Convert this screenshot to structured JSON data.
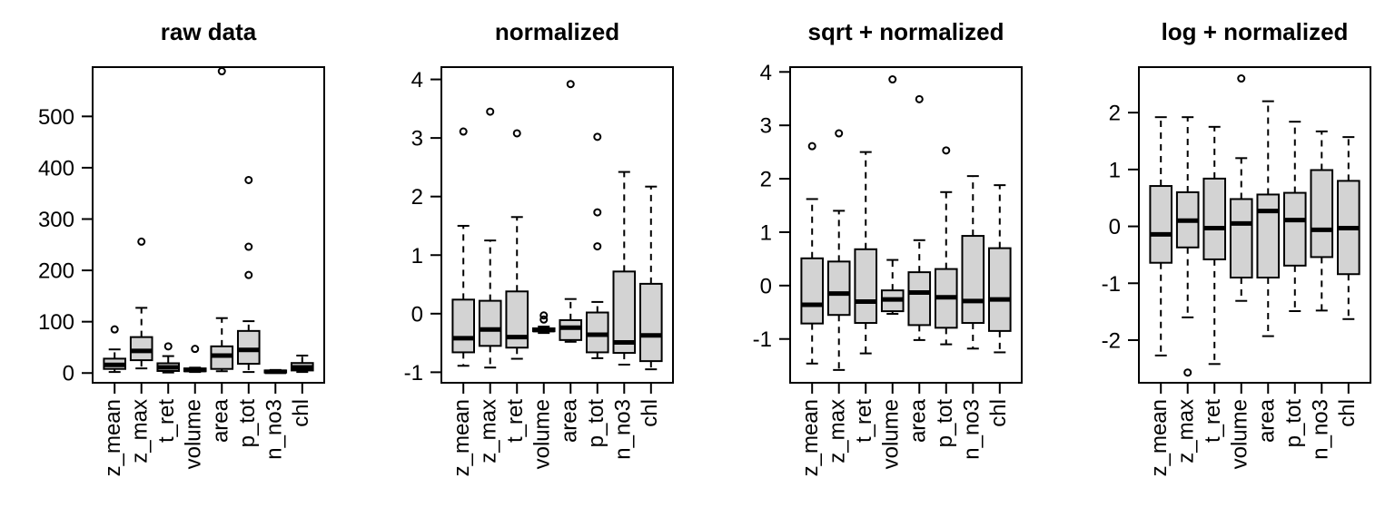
{
  "figure": {
    "background": "#ffffff",
    "box_fill": "#d3d3d3",
    "stroke_color": "#000000"
  },
  "chart_data": [
    {
      "type": "boxplot",
      "title": "raw data",
      "xlabel": "",
      "ylabel": "",
      "grid": false,
      "ylim": [
        -19,
        596
      ],
      "yticks": [
        0,
        100,
        200,
        300,
        400,
        500
      ],
      "categories": [
        "z_mean",
        "z_max",
        "t_ret",
        "volume",
        "area",
        "p_tot",
        "n_no3",
        "chl"
      ],
      "series": [
        {
          "name": "z_mean",
          "lo": 2,
          "q1": 8,
          "med": 16,
          "q3": 28,
          "hi": 46,
          "outliers": [
            85
          ]
        },
        {
          "name": "z_max",
          "lo": 9,
          "q1": 25,
          "med": 43,
          "q3": 70,
          "hi": 127,
          "outliers": [
            256
          ]
        },
        {
          "name": "t_ret",
          "lo": 1,
          "q1": 4,
          "med": 11,
          "q3": 19,
          "hi": 33,
          "outliers": [
            52
          ]
        },
        {
          "name": "volume",
          "lo": 2,
          "q1": 3.5,
          "med": 6,
          "q3": 9,
          "hi": 10.5,
          "outliers": [
            47
          ]
        },
        {
          "name": "area",
          "lo": 3.5,
          "q1": 8,
          "med": 34,
          "q3": 52,
          "hi": 107,
          "outliers": [
            588
          ]
        },
        {
          "name": "p_tot",
          "lo": 2,
          "q1": 18,
          "med": 45,
          "q3": 82,
          "hi": 101,
          "outliers": [
            191,
            246,
            376
          ]
        },
        {
          "name": "n_no3",
          "lo": 0.5,
          "q1": 1,
          "med": 2.5,
          "q3": 5,
          "hi": 6,
          "outliers": []
        },
        {
          "name": "chl",
          "lo": 2,
          "q1": 5,
          "med": 11,
          "q3": 19.5,
          "hi": 34,
          "outliers": []
        }
      ]
    },
    {
      "type": "boxplot",
      "title": "normalized",
      "xlabel": "",
      "ylabel": "",
      "grid": false,
      "ylim": [
        -1.18,
        4.21
      ],
      "yticks": [
        -1,
        0,
        1,
        2,
        3,
        4
      ],
      "categories": [
        "z_mean",
        "z_max",
        "t_ret",
        "volume",
        "area",
        "p_tot",
        "n_no3",
        "chl"
      ],
      "series": [
        {
          "name": "z_mean",
          "lo": -0.89,
          "q1": -0.66,
          "med": -0.42,
          "q3": 0.24,
          "hi": 1.5,
          "outliers": [
            3.11
          ]
        },
        {
          "name": "z_max",
          "lo": -0.92,
          "q1": -0.55,
          "med": -0.27,
          "q3": 0.22,
          "hi": 1.25,
          "outliers": [
            3.45
          ]
        },
        {
          "name": "t_ret",
          "lo": -0.77,
          "q1": -0.58,
          "med": -0.4,
          "q3": 0.38,
          "hi": 1.65,
          "outliers": [
            3.08
          ]
        },
        {
          "name": "volume",
          "lo": -0.33,
          "q1": -0.3,
          "med": -0.28,
          "q3": -0.25,
          "hi": -0.22,
          "outliers": [
            -0.03,
            -0.1
          ]
        },
        {
          "name": "area",
          "lo": -0.48,
          "q1": -0.45,
          "med": -0.24,
          "q3": -0.11,
          "hi": 0.25,
          "outliers": [
            3.92
          ]
        },
        {
          "name": "p_tot",
          "lo": -0.76,
          "q1": -0.66,
          "med": -0.36,
          "q3": 0.02,
          "hi": 0.2,
          "outliers": [
            1.15,
            1.73,
            3.02
          ]
        },
        {
          "name": "n_no3",
          "lo": -0.87,
          "q1": -0.67,
          "med": -0.49,
          "q3": 0.72,
          "hi": 2.42,
          "outliers": []
        },
        {
          "name": "chl",
          "lo": -0.95,
          "q1": -0.81,
          "med": -0.37,
          "q3": 0.51,
          "hi": 2.17,
          "outliers": []
        }
      ]
    },
    {
      "type": "boxplot",
      "title": "sqrt + normalized",
      "xlabel": "",
      "ylabel": "",
      "grid": false,
      "ylim": [
        -1.82,
        4.09
      ],
      "yticks": [
        -1,
        0,
        1,
        2,
        3,
        4
      ],
      "categories": [
        "z_mean",
        "z_max",
        "t_ret",
        "volume",
        "area",
        "p_tot",
        "n_no3",
        "chl"
      ],
      "series": [
        {
          "name": "z_mean",
          "lo": -1.46,
          "q1": -0.71,
          "med": -0.36,
          "q3": 0.51,
          "hi": 1.62,
          "outliers": [
            2.61
          ]
        },
        {
          "name": "z_max",
          "lo": -1.58,
          "q1": -0.55,
          "med": -0.15,
          "q3": 0.45,
          "hi": 1.4,
          "outliers": [
            2.85
          ]
        },
        {
          "name": "t_ret",
          "lo": -1.27,
          "q1": -0.7,
          "med": -0.3,
          "q3": 0.68,
          "hi": 2.5,
          "outliers": []
        },
        {
          "name": "volume",
          "lo": -0.53,
          "q1": -0.48,
          "med": -0.26,
          "q3": -0.09,
          "hi": 0.48,
          "outliers": [
            3.86
          ]
        },
        {
          "name": "area",
          "lo": -1.02,
          "q1": -0.74,
          "med": -0.13,
          "q3": 0.25,
          "hi": 0.85,
          "outliers": [
            3.49
          ]
        },
        {
          "name": "p_tot",
          "lo": -1.1,
          "q1": -0.79,
          "med": -0.22,
          "q3": 0.31,
          "hi": 1.75,
          "outliers": [
            2.53
          ]
        },
        {
          "name": "n_no3",
          "lo": -1.18,
          "q1": -0.7,
          "med": -0.29,
          "q3": 0.93,
          "hi": 2.05,
          "outliers": []
        },
        {
          "name": "chl",
          "lo": -1.25,
          "q1": -0.85,
          "med": -0.26,
          "q3": 0.7,
          "hi": 1.88,
          "outliers": []
        }
      ]
    },
    {
      "type": "boxplot",
      "title": "log + normalized",
      "xlabel": "",
      "ylabel": "",
      "grid": false,
      "ylim": [
        -2.75,
        2.8
      ],
      "yticks": [
        -2,
        -1,
        0,
        1,
        2
      ],
      "categories": [
        "z_mean",
        "z_max",
        "t_ret",
        "volume",
        "area",
        "p_tot",
        "n_no3",
        "chl"
      ],
      "series": [
        {
          "name": "z_mean",
          "lo": -2.27,
          "q1": -0.64,
          "med": -0.14,
          "q3": 0.71,
          "hi": 1.92,
          "outliers": []
        },
        {
          "name": "z_max",
          "lo": -1.6,
          "q1": -0.37,
          "med": 0.1,
          "q3": 0.6,
          "hi": 1.92,
          "outliers": [
            -2.57
          ]
        },
        {
          "name": "t_ret",
          "lo": -2.42,
          "q1": -0.58,
          "med": -0.03,
          "q3": 0.84,
          "hi": 1.75,
          "outliers": []
        },
        {
          "name": "volume",
          "lo": -1.31,
          "q1": -0.9,
          "med": 0.05,
          "q3": 0.48,
          "hi": 1.2,
          "outliers": [
            2.6
          ]
        },
        {
          "name": "area",
          "lo": -1.93,
          "q1": -0.9,
          "med": 0.27,
          "q3": 0.56,
          "hi": 2.2,
          "outliers": []
        },
        {
          "name": "p_tot",
          "lo": -1.49,
          "q1": -0.69,
          "med": 0.11,
          "q3": 0.59,
          "hi": 1.84,
          "outliers": []
        },
        {
          "name": "n_no3",
          "lo": -1.48,
          "q1": -0.54,
          "med": -0.06,
          "q3": 0.99,
          "hi": 1.67,
          "outliers": []
        },
        {
          "name": "chl",
          "lo": -1.63,
          "q1": -0.84,
          "med": -0.03,
          "q3": 0.8,
          "hi": 1.57,
          "outliers": []
        }
      ]
    }
  ]
}
